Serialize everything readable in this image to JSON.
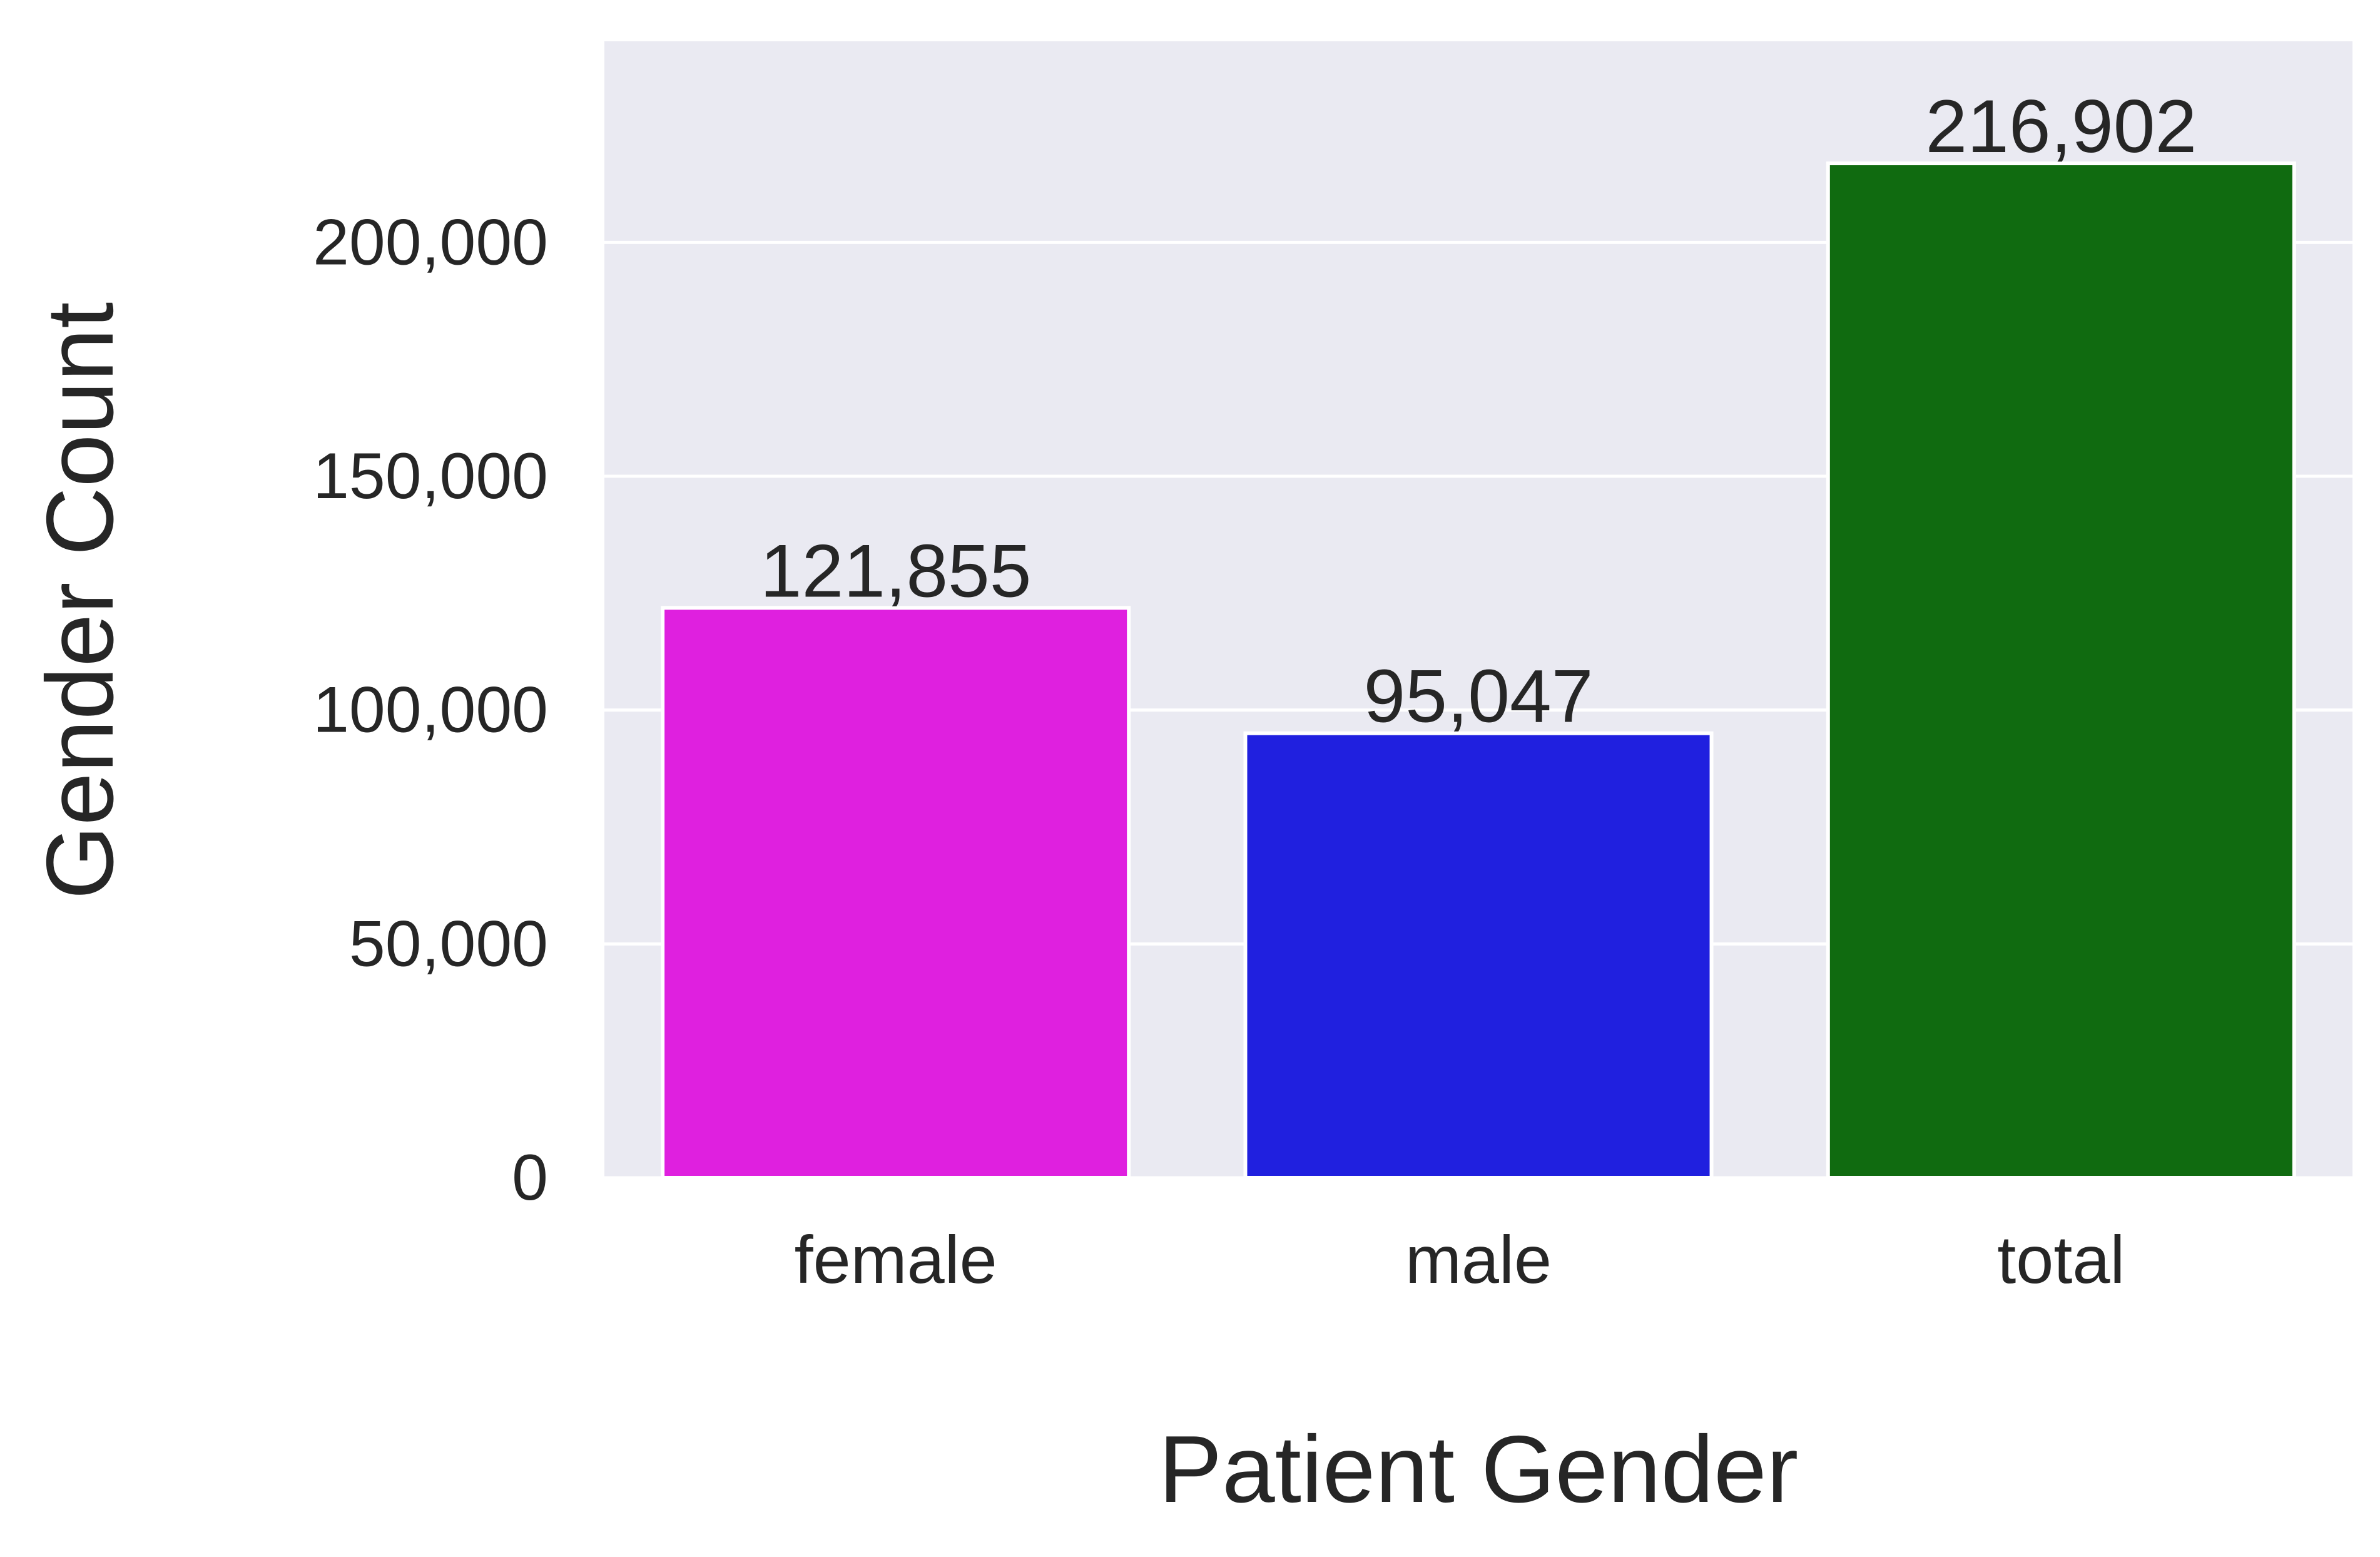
{
  "chart_data": {
    "type": "bar",
    "title": "",
    "xlabel": "Patient Gender",
    "ylabel": "Gender Count",
    "categories": [
      "female",
      "male",
      "total"
    ],
    "values": [
      121855,
      95047,
      216902
    ],
    "data_labels": [
      "121,855",
      "95,047",
      "216,902"
    ],
    "colors": [
      "#df20df",
      "#2020df",
      "#106b10"
    ],
    "ylim": [
      0,
      243000
    ],
    "yticks": [
      0,
      50000,
      100000,
      150000,
      200000
    ],
    "ytick_labels": [
      "0",
      "50,000",
      "100,000",
      "150,000",
      "200,000"
    ],
    "grid": true,
    "background_color": "#eaeaf2",
    "grid_color": "#ffffff"
  }
}
